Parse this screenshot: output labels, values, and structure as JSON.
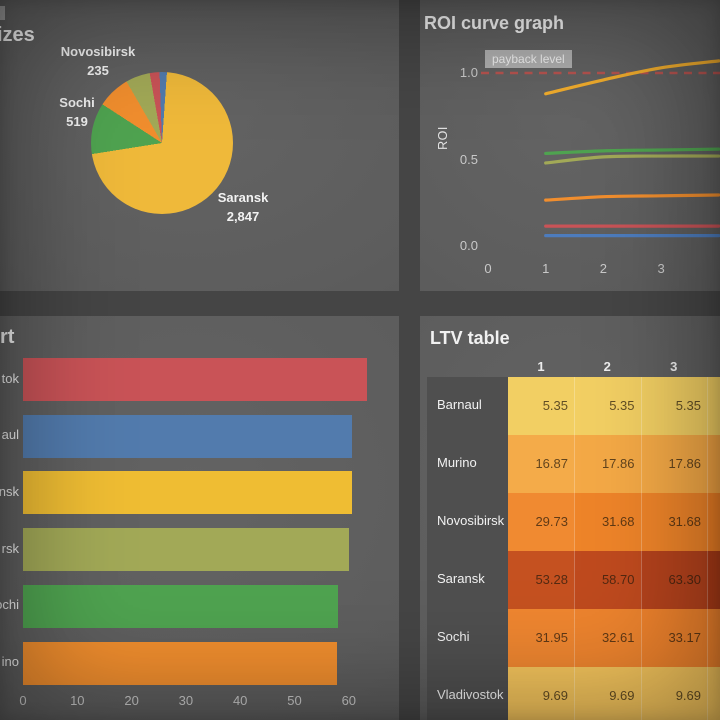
{
  "theme": {
    "page_bg": "#454545",
    "panel_bg": "#5d5d5d",
    "title_color": "#f1f1f1",
    "tick_color": "#c9c9c9",
    "payback_line_color": "#b5534f"
  },
  "chart_data": [
    {
      "id": "cohort-sizes-pie",
      "type": "pie",
      "title_fragment": "izes",
      "slices": [
        {
          "name": "Barnaul",
          "color": "#527bad",
          "angle_deg": 6,
          "value": null
        },
        {
          "name": "Saransk",
          "color": "#efb93a",
          "angle_deg": 257,
          "value": 2847,
          "label": "Saransk",
          "value_label": "2,847"
        },
        {
          "name": "Sochi",
          "color": "#4fa350",
          "angle_deg": 42,
          "value": 519,
          "label": "Sochi",
          "value_label": "519"
        },
        {
          "name": "Murino",
          "color": "#f18e2e",
          "angle_deg": 27,
          "value": null
        },
        {
          "name": "Novosibirsk",
          "color": "#a2a957",
          "angle_deg": 20,
          "value": 235,
          "label": "Novosibirsk",
          "value_label": "235"
        },
        {
          "name": "Vladivostok",
          "color": "#c95357",
          "angle_deg": 8,
          "value": null
        }
      ]
    },
    {
      "id": "roi-curve-graph",
      "type": "line",
      "title": "ROI curve graph",
      "ylabel": "ROI",
      "payback_label": "payback level",
      "payback_level": 1.0,
      "x_ticks": [
        0,
        1,
        2,
        3
      ],
      "y_ticks": [
        0.0,
        0.5,
        1.0
      ],
      "x_range": [
        0,
        4
      ],
      "series": [
        {
          "name": "Saransk",
          "color": "#f0ac2d",
          "x": [
            1,
            2,
            3,
            4
          ],
          "y": [
            0.88,
            0.96,
            1.03,
            1.07
          ]
        },
        {
          "name": "Sochi",
          "color": "#4fa350",
          "x": [
            1,
            2,
            3,
            4
          ],
          "y": [
            0.535,
            0.55,
            0.555,
            0.56
          ]
        },
        {
          "name": "Novosibirsk",
          "color": "#a2a957",
          "x": [
            1,
            2,
            3,
            4
          ],
          "y": [
            0.48,
            0.515,
            0.52,
            0.52
          ]
        },
        {
          "name": "Murino",
          "color": "#f18e2e",
          "x": [
            1,
            2,
            3,
            4
          ],
          "y": [
            0.265,
            0.285,
            0.29,
            0.295
          ]
        },
        {
          "name": "Vladivostok",
          "color": "#c95357",
          "x": [
            1,
            2,
            3,
            4
          ],
          "y": [
            0.115,
            0.115,
            0.115,
            0.115
          ]
        },
        {
          "name": "Barnaul",
          "color": "#4d7cbd",
          "x": [
            1,
            2,
            3,
            4
          ],
          "y": [
            0.06,
            0.06,
            0.06,
            0.06
          ]
        }
      ]
    },
    {
      "id": "cac-bar-chart",
      "type": "bar",
      "orientation": "horizontal",
      "title_fragment": "rt",
      "x_ticks": [
        0,
        10,
        20,
        30,
        40,
        50,
        60
      ],
      "bars": [
        {
          "name": "Vladivostok",
          "label_fragment": "tok",
          "color": "#c95357",
          "value": 63.3
        },
        {
          "name": "Barnaul",
          "label_fragment": "aul",
          "color": "#527bad",
          "value": 60.6
        },
        {
          "name": "Saransk",
          "label_fragment": "nsk",
          "color": "#efbd33",
          "value": 60.6
        },
        {
          "name": "Novosibirsk",
          "label_fragment": "rsk",
          "color": "#a2a957",
          "value": 60.0
        },
        {
          "name": "Sochi",
          "label_fragment": "ochi",
          "color": "#4fa350",
          "value": 58.0
        },
        {
          "name": "Murino",
          "label_fragment": "ino",
          "color": "#f18e2e",
          "value": 57.8
        }
      ]
    },
    {
      "id": "ltv-table",
      "type": "table",
      "title": "LTV table",
      "columns": [
        "1",
        "2",
        "3"
      ],
      "rows": [
        {
          "name": "Barnaul",
          "values": [
            "5.35",
            "5.35",
            "5.35"
          ],
          "cell_colors": [
            "#f2cf63",
            "#f2cf63",
            "#f2cf63"
          ],
          "edge_color": "#f2cf63"
        },
        {
          "name": "Murino",
          "values": [
            "16.87",
            "17.86",
            "17.86"
          ],
          "cell_colors": [
            "#f4ab49",
            "#f4a946",
            "#f4a946"
          ],
          "edge_color": "#f3a443"
        },
        {
          "name": "Novosibirsk",
          "values": [
            "29.73",
            "31.68",
            "31.68"
          ],
          "cell_colors": [
            "#f08a31",
            "#ee8429",
            "#ee8429"
          ],
          "edge_color": "#ed7f25"
        },
        {
          "name": "Saransk",
          "values": [
            "53.28",
            "58.70",
            "63.30"
          ],
          "cell_colors": [
            "#c55120",
            "#bf4a1e",
            "#b4421c"
          ],
          "edge_color": "#ab3b17"
        },
        {
          "name": "Sochi",
          "values": [
            "31.95",
            "32.61",
            "33.17"
          ],
          "cell_colors": [
            "#ef8630",
            "#ee842e",
            "#ee822c"
          ],
          "edge_color": "#ee822c"
        },
        {
          "name": "Vladivostok",
          "values": [
            "9.69",
            "9.69",
            "9.69"
          ],
          "cell_colors": [
            "#f4c45c",
            "#f4c45c",
            "#f4c45c"
          ],
          "edge_color": "#f4c45c"
        }
      ]
    }
  ]
}
